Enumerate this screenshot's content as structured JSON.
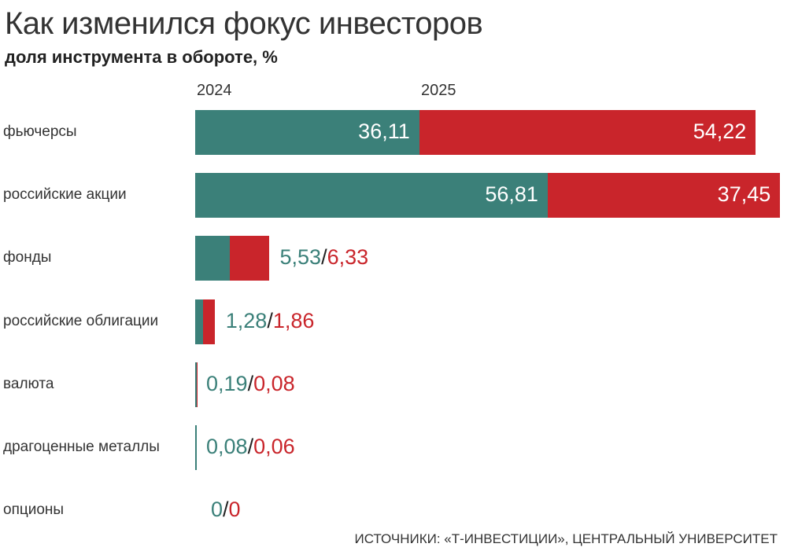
{
  "chart_data": {
    "type": "bar",
    "stacked": true,
    "orientation": "horizontal",
    "title": "Как изменился фокус инвесторов",
    "subtitle": "доля инструмента в обороте, %",
    "categories": [
      "фьючерсы",
      "российские акции",
      "фонды",
      "российские облигации",
      "валюта",
      "драгоценные металлы",
      "опционы"
    ],
    "series": [
      {
        "name": "2024",
        "color": "#3b8079",
        "values": [
          36.11,
          56.81,
          5.53,
          1.28,
          0.19,
          0.08,
          0
        ],
        "labels": [
          "36,11",
          "56,81",
          "5,53",
          "1,28",
          "0,19",
          "0,08",
          "0"
        ]
      },
      {
        "name": "2025",
        "color": "#c9252b",
        "values": [
          54.22,
          37.45,
          6.33,
          1.86,
          0.08,
          0.06,
          0
        ],
        "labels": [
          "54,22",
          "37,45",
          "6,33",
          "1,86",
          "0,08",
          "0,06",
          "0"
        ]
      }
    ],
    "separator": "/",
    "grid": false,
    "legend_placement": "top"
  },
  "source": "ИСТОЧНИКИ: «Т-ИНВЕСТИЦИИ», ЦЕНТРАЛЬНЫЙ УНИВЕРСИТЕТ"
}
